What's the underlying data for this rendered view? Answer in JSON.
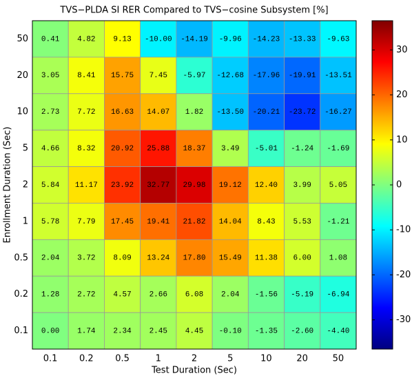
{
  "chart_data": {
    "type": "heatmap",
    "title": "TVS−PLDA SI RER Compared to TVS−cosine Subsystem [%]",
    "x_label": "Test Duration (Sec)",
    "y_label": "Enrollment Duration (Sec)",
    "x_categories": [
      "0.1",
      "0.2",
      "0.5",
      "1",
      "2",
      "5",
      "10",
      "20",
      "50"
    ],
    "y_categories": [
      "50",
      "20",
      "10",
      "5",
      "2",
      "1",
      "0.5",
      "0.2",
      "0.1"
    ],
    "values": [
      [
        0.41,
        4.82,
        9.13,
        -10.0,
        -14.19,
        -9.96,
        -14.23,
        -13.33,
        -9.63
      ],
      [
        3.05,
        8.41,
        15.75,
        7.45,
        -5.97,
        -12.68,
        -17.96,
        -19.91,
        -13.51
      ],
      [
        2.73,
        7.72,
        16.63,
        14.07,
        1.82,
        -13.5,
        -20.21,
        -23.72,
        -16.27
      ],
      [
        4.66,
        8.32,
        20.92,
        25.88,
        18.37,
        3.49,
        -5.01,
        -1.24,
        -1.69
      ],
      [
        5.84,
        11.17,
        23.92,
        32.77,
        29.98,
        19.12,
        12.4,
        3.99,
        5.05
      ],
      [
        5.78,
        7.79,
        17.45,
        19.41,
        21.82,
        14.04,
        8.43,
        5.53,
        -1.21
      ],
      [
        2.04,
        3.72,
        8.09,
        13.24,
        17.8,
        15.49,
        11.38,
        6.0,
        1.08
      ],
      [
        1.28,
        2.72,
        4.57,
        2.66,
        6.08,
        2.04,
        -1.56,
        -5.19,
        -6.94
      ],
      [
        0.0,
        1.74,
        2.34,
        2.45,
        4.45,
        -0.1,
        -1.35,
        -2.6,
        -4.4
      ]
    ],
    "value_labels": [
      [
        "0.41",
        "4.82",
        "9.13",
        "-10.00",
        "-14.19",
        "-9.96",
        "-14.23",
        "-13.33",
        "-9.63"
      ],
      [
        "3.05",
        "8.41",
        "15.75",
        "7.45",
        "-5.97",
        "-12.68",
        "-17.96",
        "-19.91",
        "-13.51"
      ],
      [
        "2.73",
        "7.72",
        "16.63",
        "14.07",
        "1.82",
        "-13.50",
        "-20.21",
        "-23.72",
        "-16.27"
      ],
      [
        "4.66",
        "8.32",
        "20.92",
        "25.88",
        "18.37",
        "3.49",
        "-5.01",
        "-1.24",
        "-1.69"
      ],
      [
        "5.84",
        "11.17",
        "23.92",
        "32.77",
        "29.98",
        "19.12",
        "12.40",
        "3.99",
        "5.05"
      ],
      [
        "5.78",
        "7.79",
        "17.45",
        "19.41",
        "21.82",
        "14.04",
        "8.43",
        "5.53",
        "-1.21"
      ],
      [
        "2.04",
        "3.72",
        "8.09",
        "13.24",
        "17.80",
        "15.49",
        "11.38",
        "6.00",
        "1.08"
      ],
      [
        "1.28",
        "2.72",
        "4.57",
        "2.66",
        "6.08",
        "2.04",
        "-1.56",
        "-5.19",
        "-6.94"
      ],
      [
        "0.00",
        "1.74",
        "2.34",
        "2.45",
        "4.45",
        "-0.10",
        "-1.35",
        "-2.60",
        "-4.40"
      ]
    ],
    "colormap": "jet",
    "clim": [
      -36.5,
      36.5
    ],
    "cticks": [
      -30,
      -20,
      -10,
      0,
      10,
      20,
      30
    ]
  }
}
